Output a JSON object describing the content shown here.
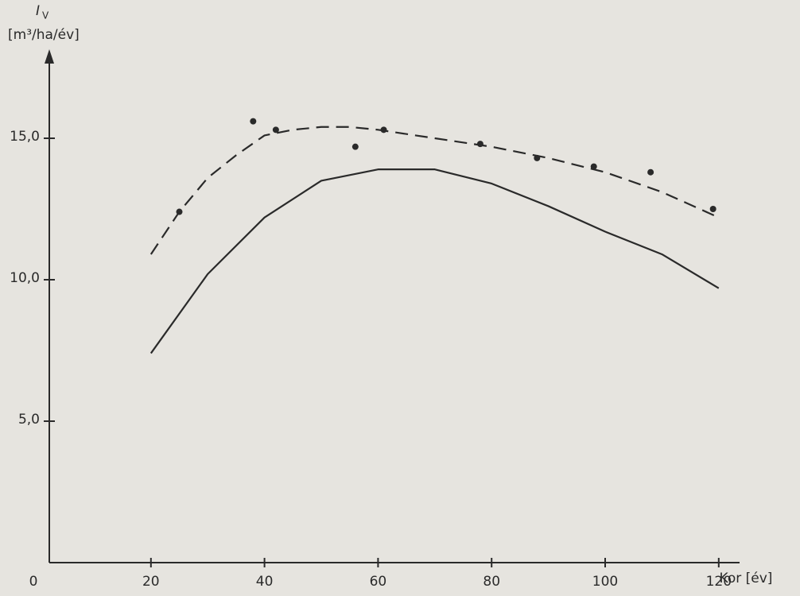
{
  "chart_data": {
    "type": "line",
    "y_label": "I",
    "y_label_sub": "V",
    "y_unit": "[m³/ha/év]",
    "x_label": "Kor [év]",
    "xlim": [
      0,
      125
    ],
    "ylim": [
      0,
      18.5
    ],
    "xticks": [
      0,
      20,
      40,
      60,
      80,
      100,
      120
    ],
    "yticks": [
      {
        "value": 5,
        "label": "5,0"
      },
      {
        "value": 10,
        "label": "10,0"
      },
      {
        "value": 15,
        "label": "15,0"
      }
    ],
    "color": "#2a2a2a",
    "series": [
      {
        "style": "dashed",
        "x": [
          20,
          25,
          30,
          35,
          40,
          45,
          50,
          55,
          60,
          70,
          80,
          90,
          100,
          110,
          120
        ],
        "values": [
          10.9,
          12.4,
          13.6,
          14.4,
          15.1,
          15.3,
          15.4,
          15.4,
          15.3,
          15.0,
          14.7,
          14.3,
          13.8,
          13.1,
          12.2
        ]
      },
      {
        "style": "solid",
        "x": [
          20,
          30,
          40,
          50,
          60,
          70,
          80,
          90,
          100,
          110,
          120
        ],
        "values": [
          7.4,
          10.2,
          12.2,
          13.5,
          13.9,
          13.9,
          13.4,
          12.6,
          11.7,
          10.9,
          9.7
        ]
      },
      {
        "style": "markers",
        "x": [
          25,
          38,
          42,
          56,
          61,
          78,
          88,
          98,
          108,
          119
        ],
        "values": [
          12.4,
          15.6,
          15.3,
          14.7,
          15.3,
          14.8,
          14.3,
          14.0,
          13.8,
          12.5
        ]
      }
    ]
  }
}
